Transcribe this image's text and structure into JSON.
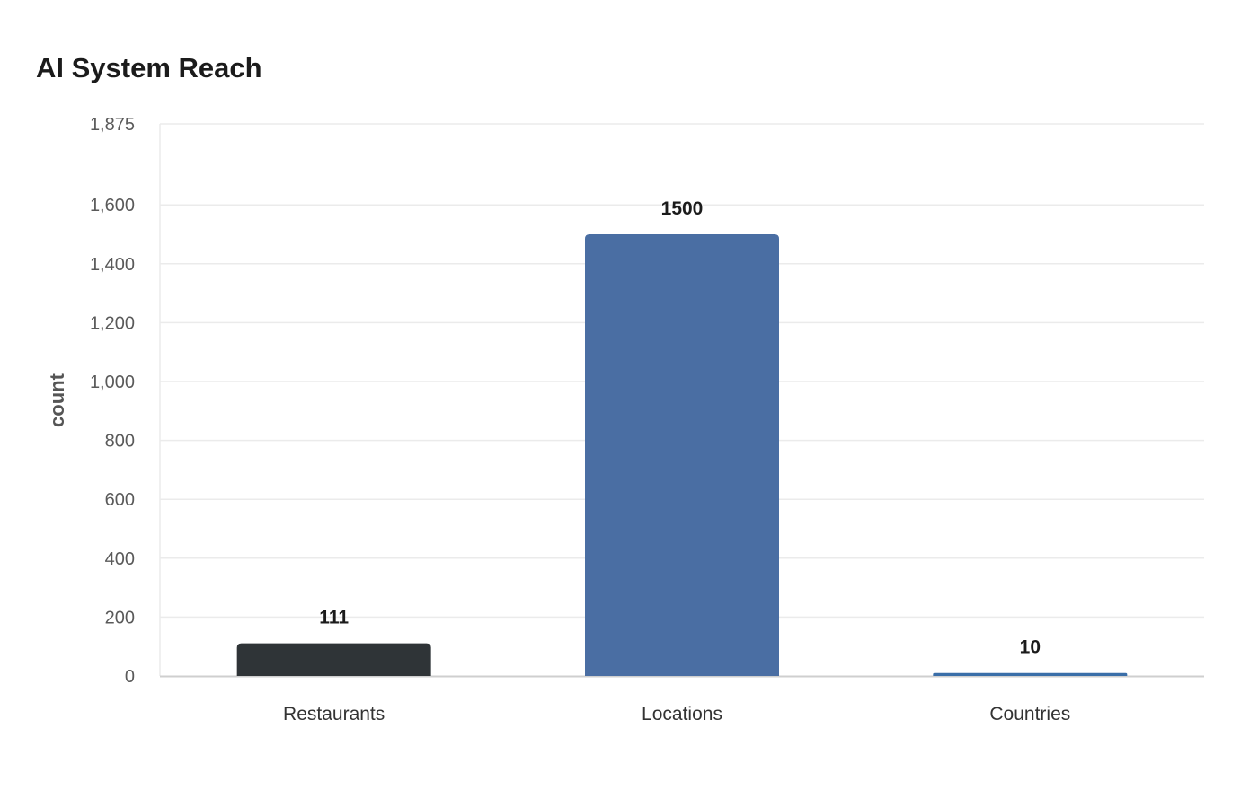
{
  "chart_data": {
    "type": "bar",
    "title": "AI System Reach",
    "xlabel": "",
    "ylabel": "count",
    "categories": [
      "Restaurants",
      "Locations",
      "Countries"
    ],
    "values": [
      111,
      1500,
      10
    ],
    "data_labels": [
      "111",
      "1500",
      "10"
    ],
    "bar_colors": [
      "#2f3437",
      "#4a6ea3",
      "#3a6ea8"
    ],
    "ylim": [
      0,
      1875
    ],
    "yticks": [
      0,
      200,
      400,
      600,
      800,
      1000,
      1200,
      1400,
      1600,
      1875
    ],
    "ytick_labels": [
      "0",
      "200",
      "400",
      "600",
      "800",
      "1,000",
      "1,200",
      "1,400",
      "1,600",
      "1,875"
    ],
    "grid": true,
    "legend": "none"
  },
  "colors": {
    "grid": "#ebebeb",
    "axis": "#cfcfcf",
    "background": "#ffffff"
  }
}
